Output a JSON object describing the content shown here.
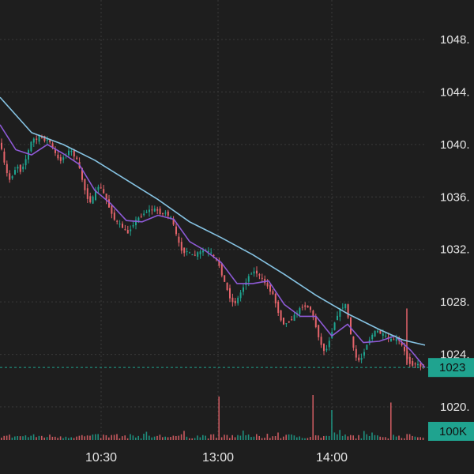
{
  "colors": {
    "background": "#1e1e1e",
    "grid": "#3a3a3a",
    "up": "#1fa38f",
    "down": "#e5646b",
    "ma_fast": "#8e5ad6",
    "ma_slow": "#86c3e3",
    "badge": "#1fa38f",
    "price_line": "#1fa38f"
  },
  "chart_data": {
    "type": "candlestick",
    "y_axis": {
      "position": "right",
      "range": [
        1018.6,
        1050.6
      ],
      "ticks": [
        1020,
        1024,
        1028,
        1032,
        1036,
        1040,
        1044,
        1048
      ],
      "tick_labels": [
        "1020.",
        "1024.",
        "1028.",
        "1032.",
        "1036.",
        "1040.",
        "1044.",
        "1048."
      ]
    },
    "x_axis": {
      "ticks": [
        "10:30",
        "13:00",
        "14:00"
      ]
    },
    "grid": true,
    "current_price_label": "1023",
    "volume_label": "100K",
    "price_path": [
      [
        0,
        1040.3
      ],
      [
        4,
        1039.2
      ],
      [
        8,
        1038.0
      ],
      [
        13,
        1037.3
      ],
      [
        18,
        1037.8
      ],
      [
        22,
        1038.5
      ],
      [
        26,
        1037.9
      ],
      [
        30,
        1038.4
      ],
      [
        34,
        1039.0
      ],
      [
        38,
        1039.8
      ],
      [
        42,
        1040.5
      ],
      [
        46,
        1040.3
      ],
      [
        50,
        1040.6
      ],
      [
        54,
        1040.5
      ],
      [
        58,
        1040.3
      ],
      [
        62,
        1040.4
      ],
      [
        66,
        1039.9
      ],
      [
        70,
        1039.4
      ],
      [
        74,
        1038.9
      ],
      [
        78,
        1038.8
      ],
      [
        82,
        1039.1
      ],
      [
        86,
        1039.4
      ],
      [
        90,
        1039.6
      ],
      [
        94,
        1039.2
      ],
      [
        98,
        1038.8
      ],
      [
        102,
        1038.0
      ],
      [
        106,
        1037.0
      ],
      [
        110,
        1036.1
      ],
      [
        114,
        1035.6
      ],
      [
        118,
        1035.9
      ],
      [
        122,
        1036.5
      ],
      [
        126,
        1036.9
      ],
      [
        130,
        1036.5
      ],
      [
        134,
        1036.0
      ],
      [
        138,
        1035.3
      ],
      [
        142,
        1034.8
      ],
      [
        146,
        1034.2
      ],
      [
        150,
        1034.0
      ],
      [
        154,
        1033.8
      ],
      [
        158,
        1033.5
      ],
      [
        162,
        1033.2
      ],
      [
        166,
        1033.6
      ],
      [
        170,
        1034.0
      ],
      [
        174,
        1034.3
      ],
      [
        178,
        1034.5
      ],
      [
        182,
        1034.7
      ],
      [
        186,
        1034.9
      ],
      [
        190,
        1035.0
      ],
      [
        194,
        1035.0
      ],
      [
        198,
        1035.1
      ],
      [
        202,
        1034.8
      ],
      [
        206,
        1034.7
      ],
      [
        210,
        1034.8
      ],
      [
        214,
        1034.6
      ],
      [
        218,
        1034.3
      ],
      [
        222,
        1033.5
      ],
      [
        226,
        1032.6
      ],
      [
        230,
        1032.0
      ],
      [
        234,
        1031.8
      ],
      [
        238,
        1031.9
      ],
      [
        242,
        1031.6
      ],
      [
        246,
        1031.5
      ],
      [
        250,
        1031.7
      ],
      [
        254,
        1031.8
      ],
      [
        258,
        1031.9
      ],
      [
        262,
        1031.9
      ],
      [
        266,
        1031.8
      ],
      [
        270,
        1031.6
      ],
      [
        274,
        1031.2
      ],
      [
        278,
        1030.8
      ],
      [
        282,
        1030.0
      ],
      [
        286,
        1029.3
      ],
      [
        290,
        1028.6
      ],
      [
        294,
        1028.0
      ],
      [
        298,
        1027.9
      ],
      [
        302,
        1028.3
      ],
      [
        306,
        1028.8
      ],
      [
        310,
        1029.3
      ],
      [
        314,
        1029.8
      ],
      [
        318,
        1030.2
      ],
      [
        322,
        1030.3
      ],
      [
        326,
        1030.2
      ],
      [
        330,
        1029.9
      ],
      [
        334,
        1029.6
      ],
      [
        338,
        1029.3
      ],
      [
        342,
        1028.9
      ],
      [
        346,
        1028.6
      ],
      [
        350,
        1027.8
      ],
      [
        354,
        1027.0
      ],
      [
        358,
        1026.4
      ],
      [
        362,
        1026.3
      ],
      [
        366,
        1026.5
      ],
      [
        370,
        1026.7
      ],
      [
        374,
        1027.0
      ],
      [
        378,
        1027.3
      ],
      [
        382,
        1027.6
      ],
      [
        386,
        1027.7
      ],
      [
        390,
        1027.6
      ],
      [
        394,
        1027.4
      ],
      [
        398,
        1026.6
      ],
      [
        402,
        1025.8
      ],
      [
        406,
        1024.9
      ],
      [
        410,
        1024.3
      ],
      [
        414,
        1024.4
      ],
      [
        418,
        1025.2
      ],
      [
        422,
        1026.0
      ],
      [
        426,
        1026.8
      ],
      [
        430,
        1027.3
      ],
      [
        434,
        1027.6
      ],
      [
        438,
        1027.8
      ],
      [
        442,
        1026.6
      ],
      [
        446,
        1025.0
      ],
      [
        450,
        1023.9
      ],
      [
        454,
        1023.5
      ],
      [
        458,
        1023.7
      ],
      [
        462,
        1024.3
      ],
      [
        466,
        1024.9
      ],
      [
        470,
        1025.3
      ],
      [
        474,
        1025.7
      ],
      [
        478,
        1025.8
      ],
      [
        482,
        1025.6
      ],
      [
        486,
        1025.5
      ],
      [
        490,
        1025.3
      ],
      [
        494,
        1025.1
      ],
      [
        498,
        1025.1
      ],
      [
        502,
        1025.2
      ],
      [
        506,
        1025.0
      ],
      [
        510,
        1024.6
      ],
      [
        514,
        1024.0
      ],
      [
        518,
        1023.4
      ],
      [
        522,
        1023.2
      ],
      [
        526,
        1023.3
      ],
      [
        530,
        1023.2
      ],
      [
        534,
        1023.1
      ],
      [
        538,
        1023.0
      ]
    ],
    "spikes": [
      [
        515,
        1027.5,
        1023.2
      ]
    ],
    "ma_fast_path": [
      [
        0,
        1041.5
      ],
      [
        20,
        1039.6
      ],
      [
        40,
        1039.2
      ],
      [
        60,
        1040.0
      ],
      [
        80,
        1039.3
      ],
      [
        100,
        1038.5
      ],
      [
        120,
        1036.5
      ],
      [
        140,
        1035.5
      ],
      [
        160,
        1034.2
      ],
      [
        180,
        1034.1
      ],
      [
        200,
        1034.6
      ],
      [
        220,
        1034.3
      ],
      [
        240,
        1032.6
      ],
      [
        260,
        1031.9
      ],
      [
        280,
        1031.0
      ],
      [
        300,
        1029.4
      ],
      [
        320,
        1029.4
      ],
      [
        340,
        1029.6
      ],
      [
        360,
        1027.8
      ],
      [
        380,
        1026.9
      ],
      [
        400,
        1026.9
      ],
      [
        420,
        1025.4
      ],
      [
        440,
        1026.3
      ],
      [
        460,
        1024.9
      ],
      [
        480,
        1025.0
      ],
      [
        500,
        1025.4
      ],
      [
        520,
        1024.3
      ],
      [
        538,
        1023.0
      ]
    ],
    "ma_slow_path": [
      [
        0,
        1043.6
      ],
      [
        40,
        1040.9
      ],
      [
        80,
        1040.0
      ],
      [
        120,
        1038.8
      ],
      [
        160,
        1037.3
      ],
      [
        200,
        1035.8
      ],
      [
        240,
        1034.1
      ],
      [
        280,
        1032.9
      ],
      [
        320,
        1031.6
      ],
      [
        360,
        1030.1
      ],
      [
        400,
        1028.5
      ],
      [
        440,
        1027.1
      ],
      [
        480,
        1025.9
      ],
      [
        510,
        1025.1
      ],
      [
        538,
        1024.7
      ]
    ],
    "volume": {
      "max_value": 100,
      "spikes": [
        [
          278,
          58
        ],
        [
          394,
          60
        ],
        [
          418,
          40
        ],
        [
          495,
          50
        ],
        [
          515,
          8
        ],
        [
          460,
          12
        ],
        [
          470,
          10
        ],
        [
          350,
          10
        ]
      ]
    }
  }
}
